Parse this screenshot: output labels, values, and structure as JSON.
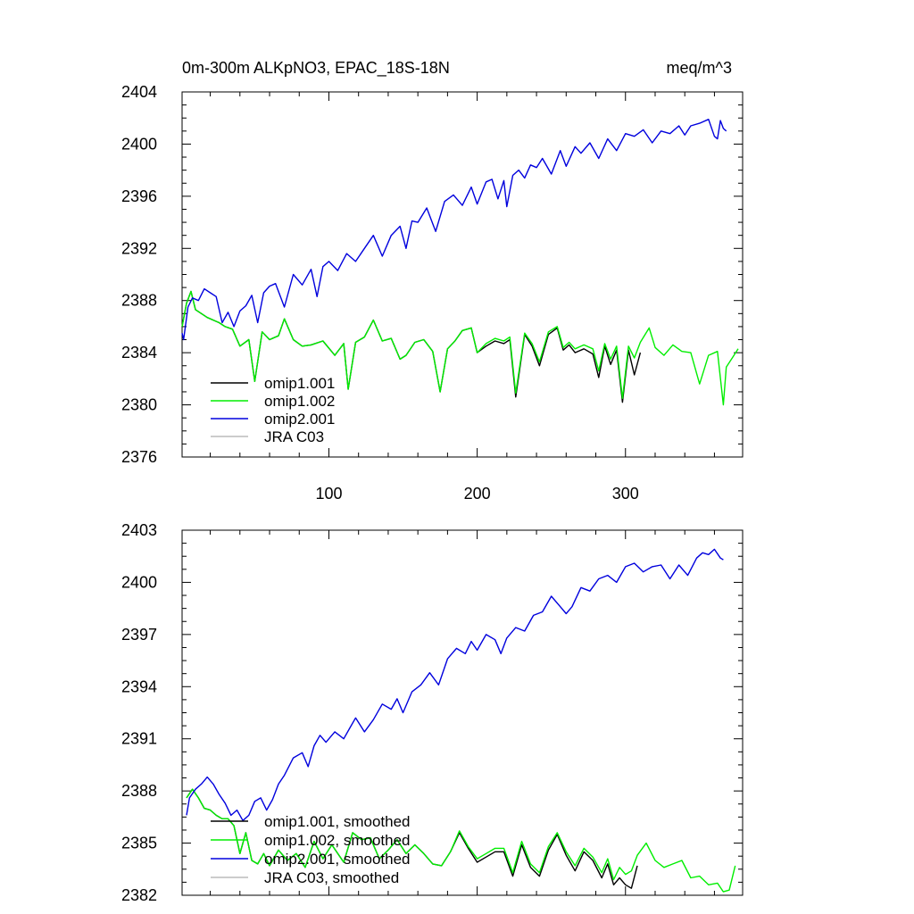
{
  "header": {
    "title": "0m-300m ALKpNO3, EPAC_18S-18N",
    "units": "meq/m^3"
  },
  "chart_data": [
    {
      "type": "line",
      "title": "0m-300m ALKpNO3, EPAC_18S-18N",
      "xlim": [
        1,
        379
      ],
      "ylim": [
        2376,
        2404
      ],
      "yticks": [
        "2376",
        "2380",
        "2384",
        "2388",
        "2392",
        "2396",
        "2400",
        "2404"
      ],
      "xticks": [
        "100",
        "200",
        "300"
      ],
      "legend": [
        "omip1.001",
        "omip1.002",
        "omip2.001",
        "JRA C03"
      ],
      "series": [
        {
          "name": "omip1.001",
          "color": "#000000",
          "x": [
            1,
            4,
            7,
            10,
            14,
            18,
            22,
            26,
            30,
            35,
            40,
            46,
            50,
            55,
            60,
            66,
            70,
            76,
            82,
            88,
            96,
            104,
            110,
            113,
            118,
            124,
            130,
            136,
            142,
            148,
            152,
            158,
            164,
            170,
            175,
            180,
            185,
            190,
            196,
            200,
            206,
            212,
            218,
            222,
            226,
            232,
            237,
            242,
            248,
            254,
            258,
            262,
            266,
            272,
            278,
            282,
            286,
            290,
            294,
            298,
            302,
            306,
            310
          ],
          "values": [
            2386,
            2387.8,
            2388.7,
            2387.3,
            2387.0,
            2386.7,
            2386.5,
            2386.3,
            2386.0,
            2385.8,
            2384.5,
            2385.0,
            2381.8,
            2385.6,
            2385.0,
            2385.3,
            2386.6,
            2385.0,
            2384.5,
            2384.6,
            2384.9,
            2383.8,
            2384.7,
            2381.2,
            2384.8,
            2385.2,
            2386.5,
            2384.9,
            2385.1,
            2383.5,
            2383.8,
            2384.8,
            2385.0,
            2384.1,
            2381.0,
            2384.3,
            2384.9,
            2385.7,
            2385.9,
            2384.0,
            2384.5,
            2384.9,
            2384.7,
            2385.0,
            2380.6,
            2385.4,
            2384.5,
            2383.0,
            2385.4,
            2385.9,
            2384.2,
            2384.6,
            2384.0,
            2384.3,
            2383.9,
            2382.1,
            2384.5,
            2383.1,
            2384.2,
            2380.2,
            2384.2,
            2382.3,
            2384.0
          ]
        },
        {
          "name": "omip1.002",
          "color": "#00ee00",
          "x": [
            1,
            4,
            7,
            10,
            14,
            18,
            22,
            26,
            30,
            35,
            40,
            46,
            50,
            55,
            60,
            66,
            70,
            76,
            82,
            88,
            96,
            104,
            110,
            113,
            118,
            124,
            130,
            136,
            142,
            148,
            152,
            158,
            164,
            170,
            175,
            180,
            185,
            190,
            196,
            200,
            206,
            212,
            218,
            222,
            226,
            232,
            237,
            242,
            248,
            254,
            258,
            262,
            266,
            272,
            278,
            282,
            286,
            290,
            294,
            298,
            302,
            306,
            310,
            316,
            320,
            326,
            332,
            338,
            344,
            350,
            356,
            362,
            366,
            368,
            372,
            376
          ],
          "values": [
            2386,
            2387.8,
            2388.7,
            2387.3,
            2387.0,
            2386.7,
            2386.5,
            2386.3,
            2386.0,
            2385.8,
            2384.5,
            2385.0,
            2381.8,
            2385.6,
            2385.0,
            2385.3,
            2386.6,
            2385.0,
            2384.5,
            2384.6,
            2384.9,
            2383.8,
            2384.7,
            2381.2,
            2384.8,
            2385.2,
            2386.5,
            2384.9,
            2385.1,
            2383.5,
            2383.8,
            2384.8,
            2385.0,
            2384.1,
            2381.0,
            2384.3,
            2384.9,
            2385.7,
            2385.9,
            2384.0,
            2384.7,
            2385.1,
            2384.9,
            2385.2,
            2380.9,
            2385.5,
            2384.7,
            2383.3,
            2385.6,
            2386.0,
            2384.4,
            2384.8,
            2384.3,
            2384.6,
            2384.3,
            2382.6,
            2384.7,
            2383.5,
            2384.5,
            2380.5,
            2384.5,
            2383.6,
            2384.8,
            2385.9,
            2384.4,
            2383.8,
            2384.6,
            2384.1,
            2384.0,
            2381.6,
            2383.8,
            2384.1,
            2380.0,
            2382.9,
            2383.6,
            2384.3
          ]
        },
        {
          "name": "omip2.001",
          "color": "#0000dd",
          "x": [
            1,
            2,
            5,
            8,
            12,
            16,
            20,
            24,
            28,
            32,
            36,
            40,
            44,
            48,
            52,
            56,
            60,
            64,
            70,
            76,
            82,
            88,
            92,
            96,
            100,
            106,
            112,
            118,
            124,
            130,
            136,
            142,
            148,
            152,
            156,
            160,
            166,
            172,
            178,
            184,
            190,
            196,
            200,
            206,
            210,
            214,
            218,
            220,
            224,
            228,
            232,
            236,
            240,
            244,
            250,
            256,
            260,
            266,
            270,
            276,
            282,
            288,
            294,
            300,
            306,
            312,
            318,
            324,
            330,
            336,
            340,
            344,
            350,
            356,
            360,
            362,
            364,
            366,
            368
          ],
          "values": [
            2385.5,
            2385.0,
            2387.5,
            2388.2,
            2388.0,
            2388.9,
            2388.6,
            2388.3,
            2386.3,
            2387.1,
            2386.0,
            2387.2,
            2387.6,
            2388.4,
            2386.3,
            2388.6,
            2389.1,
            2389.3,
            2387.5,
            2390.0,
            2389.2,
            2390.4,
            2388.3,
            2390.6,
            2391.0,
            2390.3,
            2391.6,
            2391.0,
            2392.0,
            2393.0,
            2391.4,
            2393.0,
            2393.7,
            2392.0,
            2394.1,
            2394.0,
            2395.1,
            2393.3,
            2395.6,
            2396.1,
            2395.3,
            2396.7,
            2395.4,
            2397.1,
            2397.3,
            2395.8,
            2397.2,
            2395.2,
            2397.6,
            2398.0,
            2397.4,
            2398.4,
            2398.2,
            2398.9,
            2397.7,
            2399.5,
            2398.3,
            2399.8,
            2399.3,
            2400.1,
            2398.9,
            2400.4,
            2399.5,
            2400.8,
            2400.6,
            2401.1,
            2400.1,
            2401.0,
            2400.8,
            2401.4,
            2400.7,
            2401.4,
            2401.6,
            2401.9,
            2400.6,
            2400.4,
            2401.8,
            2401.2,
            2401.0
          ]
        },
        {
          "name": "JRA C03",
          "color": "#bbbbbb",
          "x": [],
          "values": []
        }
      ]
    },
    {
      "type": "line",
      "title": "",
      "xlim": [
        1,
        379
      ],
      "ylim": [
        2382,
        2403
      ],
      "yticks": [
        "2382",
        "2385",
        "2388",
        "2391",
        "2394",
        "2397",
        "2400",
        "2403"
      ],
      "xticks": [],
      "legend": [
        "omip1.001, smoothed",
        "omip1.002, smoothed",
        "omip2.001, smoothed",
        "JRA C03, smoothed"
      ],
      "series": [
        {
          "name": "omip1.001, smoothed",
          "color": "#000000",
          "x": [
            4,
            8,
            12,
            16,
            20,
            24,
            28,
            32,
            36,
            40,
            44,
            48,
            52,
            56,
            60,
            66,
            72,
            78,
            84,
            90,
            96,
            102,
            110,
            116,
            122,
            128,
            134,
            140,
            146,
            152,
            158,
            164,
            170,
            176,
            182,
            188,
            194,
            200,
            206,
            212,
            218,
            224,
            230,
            236,
            242,
            248,
            254,
            260,
            266,
            272,
            278,
            284,
            288,
            292,
            296,
            300,
            304,
            308
          ],
          "values": [
            2387.6,
            2388.1,
            2387.6,
            2387.0,
            2386.9,
            2386.6,
            2386.4,
            2386.4,
            2386.0,
            2384.4,
            2385.6,
            2384.0,
            2383.8,
            2384.4,
            2383.7,
            2384.6,
            2384.0,
            2384.4,
            2383.6,
            2385.1,
            2384.1,
            2384.9,
            2383.9,
            2385.6,
            2385.2,
            2385.3,
            2384.1,
            2384.6,
            2385.2,
            2384.4,
            2384.9,
            2384.4,
            2383.8,
            2383.7,
            2384.5,
            2385.6,
            2384.7,
            2383.9,
            2384.2,
            2384.5,
            2384.5,
            2383.1,
            2384.9,
            2383.6,
            2383.1,
            2384.6,
            2385.5,
            2384.3,
            2383.4,
            2384.5,
            2384.0,
            2383.0,
            2383.8,
            2382.6,
            2383.0,
            2382.6,
            2382.4,
            2383.7
          ]
        },
        {
          "name": "omip1.002, smoothed",
          "color": "#00ee00",
          "x": [
            4,
            8,
            12,
            16,
            20,
            24,
            28,
            32,
            36,
            40,
            44,
            48,
            52,
            56,
            60,
            66,
            72,
            78,
            84,
            90,
            96,
            102,
            110,
            116,
            122,
            128,
            134,
            140,
            146,
            152,
            158,
            164,
            170,
            176,
            182,
            188,
            194,
            200,
            206,
            212,
            218,
            224,
            230,
            236,
            242,
            248,
            254,
            260,
            266,
            272,
            278,
            284,
            288,
            292,
            296,
            300,
            304,
            308,
            314,
            320,
            326,
            332,
            338,
            344,
            350,
            356,
            362,
            366,
            370,
            374
          ],
          "values": [
            2387.6,
            2388.1,
            2387.6,
            2387.0,
            2386.9,
            2386.6,
            2386.4,
            2386.4,
            2386.0,
            2384.4,
            2385.6,
            2384.0,
            2383.8,
            2384.4,
            2383.7,
            2384.6,
            2384.0,
            2384.4,
            2383.6,
            2385.1,
            2384.1,
            2384.9,
            2383.9,
            2385.6,
            2385.2,
            2385.3,
            2384.1,
            2384.6,
            2385.2,
            2384.4,
            2384.9,
            2384.4,
            2383.8,
            2383.7,
            2384.5,
            2385.7,
            2384.8,
            2384.1,
            2384.4,
            2384.7,
            2384.7,
            2383.3,
            2385.1,
            2383.8,
            2383.3,
            2384.8,
            2385.6,
            2384.5,
            2383.7,
            2384.7,
            2384.2,
            2383.3,
            2384.1,
            2382.9,
            2383.6,
            2383.2,
            2383.4,
            2384.3,
            2385.0,
            2384.0,
            2383.6,
            2383.8,
            2384.0,
            2383.0,
            2383.1,
            2382.6,
            2382.7,
            2382.2,
            2382.3,
            2383.7
          ]
        },
        {
          "name": "omip2.001, smoothed",
          "color": "#0000dd",
          "x": [
            4,
            6,
            10,
            14,
            18,
            22,
            26,
            30,
            34,
            38,
            42,
            46,
            50,
            54,
            58,
            62,
            66,
            70,
            76,
            82,
            86,
            90,
            94,
            98,
            104,
            110,
            114,
            118,
            124,
            130,
            136,
            142,
            146,
            150,
            156,
            162,
            168,
            174,
            180,
            186,
            192,
            196,
            200,
            206,
            212,
            216,
            220,
            226,
            232,
            238,
            244,
            250,
            256,
            260,
            264,
            270,
            276,
            282,
            288,
            294,
            300,
            306,
            312,
            318,
            324,
            330,
            336,
            342,
            348,
            352,
            356,
            360,
            364,
            366
          ],
          "values": [
            2386.6,
            2387.6,
            2388.1,
            2388.4,
            2388.8,
            2388.4,
            2387.8,
            2387.3,
            2386.6,
            2386.9,
            2386.3,
            2386.6,
            2387.4,
            2387.6,
            2386.9,
            2387.5,
            2388.4,
            2388.9,
            2389.9,
            2390.2,
            2389.4,
            2390.6,
            2391.2,
            2390.8,
            2391.4,
            2391.0,
            2391.6,
            2392.2,
            2391.4,
            2392.1,
            2393.0,
            2392.7,
            2393.3,
            2392.5,
            2393.7,
            2394.1,
            2394.8,
            2394.1,
            2395.6,
            2396.2,
            2395.9,
            2396.6,
            2396.1,
            2397.0,
            2396.7,
            2395.9,
            2396.8,
            2397.4,
            2397.2,
            2398.1,
            2398.3,
            2399.2,
            2398.6,
            2398.2,
            2398.6,
            2399.7,
            2399.5,
            2400.2,
            2400.4,
            2400.0,
            2400.9,
            2401.1,
            2400.6,
            2400.9,
            2401.0,
            2400.2,
            2401.0,
            2400.4,
            2401.4,
            2401.7,
            2401.6,
            2401.9,
            2401.4,
            2401.3
          ]
        },
        {
          "name": "JRA C03, smoothed",
          "color": "#bbbbbb",
          "x": [],
          "values": []
        }
      ]
    }
  ]
}
